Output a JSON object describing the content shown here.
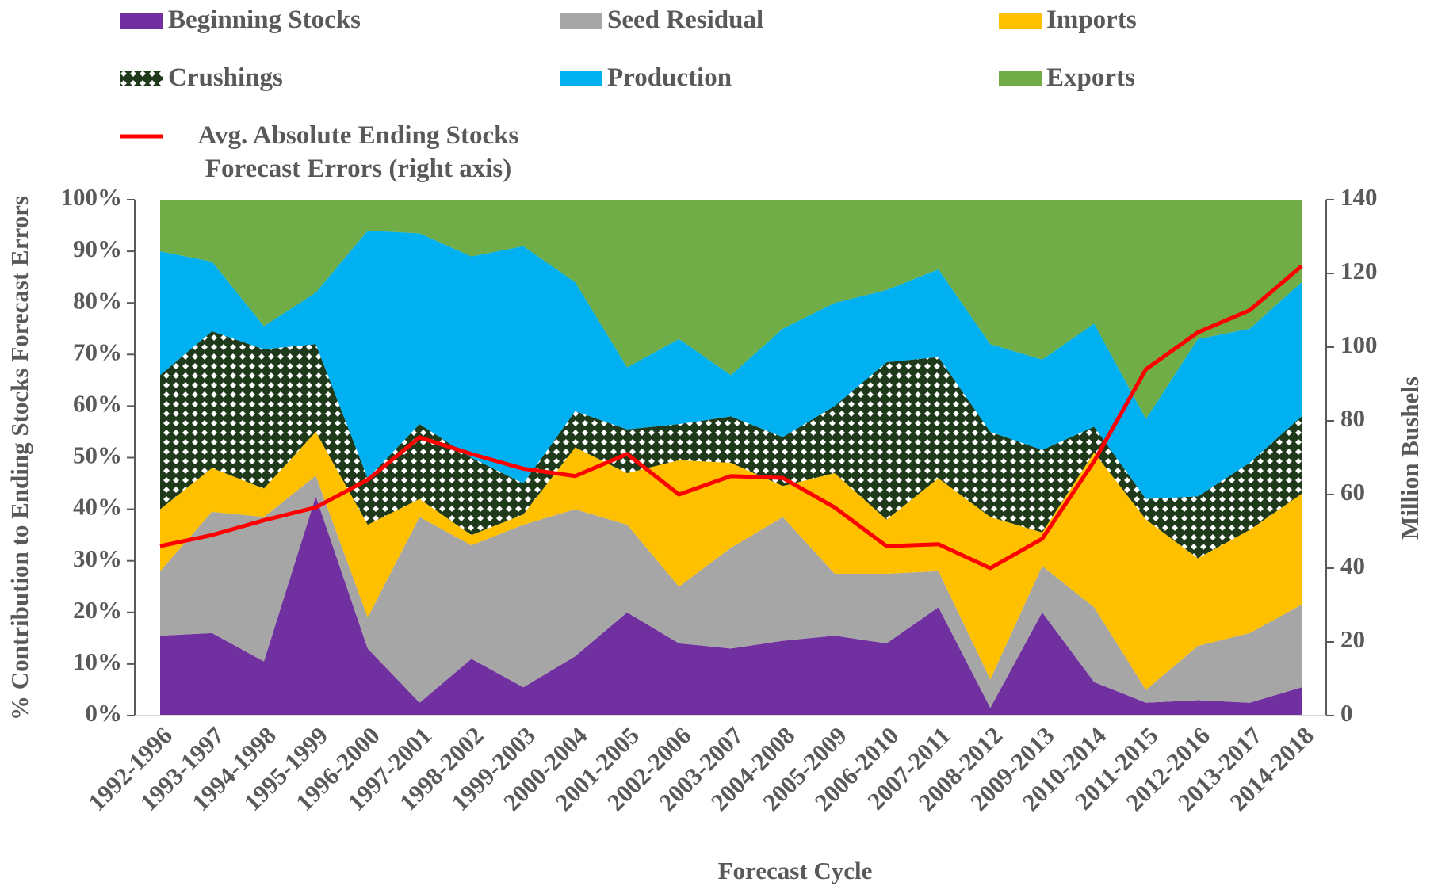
{
  "chart_data": {
    "type": "stacked-area-line",
    "x_label": "Forecast Cycle",
    "y_label": "% Contribution to Ending Stocks Forecast Errors",
    "y2_label": "Million Bushels",
    "categories": [
      "1992-1996",
      "1993-1997",
      "1994-1998",
      "1995-1999",
      "1996-2000",
      "1997-2001",
      "1998-2002",
      "1999-2003",
      "2000-2004",
      "2001-2005",
      "2002-2006",
      "2003-2007",
      "2004-2008",
      "2005-2009",
      "2006-2010",
      "2007-2011",
      "2008-2012",
      "2009-2013",
      "2010-2014",
      "2011-2015",
      "2012-2016",
      "2013-2017",
      "2014-2018"
    ],
    "series": [
      {
        "name": "Beginning Stocks",
        "color": "#7030a0",
        "values": [
          15.5,
          16,
          10.5,
          42.5,
          13,
          2.5,
          11,
          5.5,
          11.5,
          20,
          14,
          13,
          14.5,
          15.5,
          14,
          21,
          1.5,
          20,
          6.5,
          2.5,
          3,
          2.5,
          5.5
        ]
      },
      {
        "name": "Seed Residual",
        "color": "#a6a6a6",
        "values": [
          12.5,
          23.5,
          28,
          4,
          6,
          36,
          22,
          31.5,
          28.5,
          17,
          11,
          19.5,
          24,
          12,
          13.5,
          7,
          5.5,
          9,
          14.5,
          2.5,
          10.5,
          13.5,
          16
        ]
      },
      {
        "name": "Imports",
        "color": "#ffc000",
        "values": [
          12,
          8.5,
          5.5,
          8.5,
          18,
          3.5,
          2,
          2,
          12,
          10,
          24.5,
          16.5,
          6,
          19.5,
          10.5,
          18,
          31.5,
          6.5,
          30,
          33,
          17,
          20,
          21.5
        ]
      },
      {
        "name": "Crushings",
        "color": "#1f3a1a",
        "pattern": "diamond",
        "values": [
          26,
          26.5,
          27,
          17,
          9,
          14.5,
          15,
          6,
          7,
          8.5,
          7,
          9,
          9.5,
          13,
          30.5,
          23.5,
          16.5,
          16,
          5,
          4,
          12,
          13,
          15
        ]
      },
      {
        "name": "Production",
        "color": "#00b0f0",
        "values": [
          24,
          13.5,
          4.5,
          10,
          48,
          37,
          39,
          46,
          25,
          12,
          16.5,
          8,
          21,
          20,
          14,
          17,
          17,
          17.5,
          20,
          15.5,
          30.5,
          26,
          26
        ]
      },
      {
        "name": "Exports",
        "color": "#70ad47",
        "values": [
          10,
          12,
          24.5,
          18,
          6,
          6.5,
          11,
          9,
          16,
          32.5,
          27,
          34,
          25,
          20,
          17.5,
          13.5,
          28,
          31,
          24,
          42.5,
          27,
          25,
          16
        ]
      },
      {
        "name": "Avg. Absolute Ending Stocks Forecast Errors (right axis)",
        "color": "#ff0000",
        "axis": "y2",
        "values": [
          46,
          49,
          53,
          56.5,
          64,
          75.5,
          71,
          67,
          65,
          71,
          60,
          65,
          64.5,
          56.5,
          46,
          46.5,
          40,
          48,
          69,
          94,
          104,
          110,
          122
        ]
      }
    ],
    "ylim": [
      0,
      100
    ],
    "yticks": [
      {
        "value": 0,
        "label": "0%"
      },
      {
        "value": 10,
        "label": "10%"
      },
      {
        "value": 20,
        "label": "20%"
      },
      {
        "value": 30,
        "label": "30%"
      },
      {
        "value": 40,
        "label": "40%"
      },
      {
        "value": 50,
        "label": "50%"
      },
      {
        "value": 60,
        "label": "60%"
      },
      {
        "value": 70,
        "label": "70%"
      },
      {
        "value": 80,
        "label": "80%"
      },
      {
        "value": 90,
        "label": "90%"
      },
      {
        "value": 100,
        "label": "100%"
      }
    ],
    "y2lim": [
      0,
      140
    ],
    "y2ticks": [
      0,
      20,
      40,
      60,
      80,
      100,
      120,
      140
    ],
    "grid": false,
    "legend": "top"
  }
}
